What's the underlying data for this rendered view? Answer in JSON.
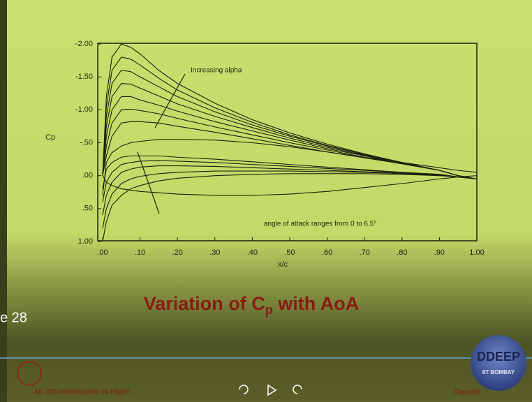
{
  "chart_data": {
    "type": "line",
    "ylabel": "Cp",
    "xlabel": "x/c",
    "annotations": [
      "Increasing alpha",
      "angle of attack ranges from 0 to 6.5°"
    ],
    "x": [
      0,
      0.01,
      0.025,
      0.05,
      0.075,
      0.1,
      0.15,
      0.2,
      0.3,
      0.4,
      0.5,
      0.6,
      0.7,
      0.8,
      0.9,
      0.95,
      1.0
    ],
    "xlim": [
      0,
      1
    ],
    "xticks": [
      {
        "value": 0,
        "label": ".00"
      },
      {
        "value": 0.1,
        "label": ".10"
      },
      {
        "value": 0.2,
        "label": ".20"
      },
      {
        "value": 0.3,
        "label": ".30"
      },
      {
        "value": 0.4,
        "label": ".40"
      },
      {
        "value": 0.5,
        "label": ".50"
      },
      {
        "value": 0.6,
        "label": ".60"
      },
      {
        "value": 0.7,
        "label": ".70"
      },
      {
        "value": 0.8,
        "label": ".80"
      },
      {
        "value": 0.9,
        "label": ".90"
      },
      {
        "value": 1,
        "label": "1.00"
      }
    ],
    "ylim": [
      -2,
      1
    ],
    "y_inverted": true,
    "yticks": [
      {
        "value": -2,
        "label": "-2.00"
      },
      {
        "value": -1.5,
        "label": "-1.50"
      },
      {
        "value": -1,
        "label": "-1.00"
      },
      {
        "value": -0.5,
        "label": "-.50"
      },
      {
        "value": 0,
        "label": ".00"
      },
      {
        "value": 0.5,
        "label": ".50"
      },
      {
        "value": 1,
        "label": "1.00"
      }
    ],
    "color": "#1c200c",
    "series": [
      {
        "values": [
          0.0,
          -1.2,
          -1.8,
          -2.0,
          -1.95,
          -1.85,
          -1.6,
          -1.4,
          -1.1,
          -0.85,
          -0.65,
          -0.48,
          -0.33,
          -0.2,
          -0.08,
          0.0,
          0.05
        ]
      },
      {
        "values": [
          0.0,
          -1.05,
          -1.6,
          -1.8,
          -1.77,
          -1.68,
          -1.48,
          -1.3,
          -1.03,
          -0.81,
          -0.62,
          -0.46,
          -0.32,
          -0.2,
          -0.08,
          0.0,
          0.05
        ]
      },
      {
        "values": [
          0.0,
          -0.9,
          -1.4,
          -1.6,
          -1.58,
          -1.5,
          -1.35,
          -1.2,
          -0.97,
          -0.77,
          -0.6,
          -0.45,
          -0.32,
          -0.2,
          -0.08,
          0.0,
          0.05
        ]
      },
      {
        "values": [
          0.0,
          -0.75,
          -1.2,
          -1.4,
          -1.39,
          -1.33,
          -1.21,
          -1.09,
          -0.9,
          -0.73,
          -0.57,
          -0.43,
          -0.31,
          -0.19,
          -0.08,
          0.0,
          0.05
        ]
      },
      {
        "values": [
          0.0,
          -0.6,
          -1.0,
          -1.2,
          -1.2,
          -1.15,
          -1.07,
          -0.98,
          -0.82,
          -0.68,
          -0.54,
          -0.41,
          -0.3,
          -0.19,
          -0.08,
          0.0,
          0.05
        ]
      },
      {
        "values": [
          0.0,
          -0.45,
          -0.8,
          -1.0,
          -1.01,
          -0.99,
          -0.94,
          -0.87,
          -0.74,
          -0.62,
          -0.5,
          -0.39,
          -0.28,
          -0.18,
          -0.08,
          0.0,
          0.05
        ]
      },
      {
        "values": [
          0.0,
          -0.3,
          -0.6,
          -0.8,
          -0.82,
          -0.82,
          -0.8,
          -0.75,
          -0.66,
          -0.56,
          -0.46,
          -0.36,
          -0.27,
          -0.18,
          -0.08,
          0.0,
          0.05
        ]
      },
      {
        "values": [
          0.3,
          -0.2,
          -0.35,
          -0.45,
          -0.5,
          -0.52,
          -0.55,
          -0.55,
          -0.54,
          -0.5,
          -0.44,
          -0.36,
          -0.28,
          -0.2,
          -0.12,
          -0.08,
          -0.05
        ]
      },
      {
        "values": [
          1.0,
          0.7,
          0.45,
          0.3,
          0.2,
          0.15,
          0.08,
          0.04,
          0.0,
          -0.02,
          -0.03,
          -0.03,
          -0.03,
          -0.02,
          0.0,
          0.02,
          0.05
        ]
      },
      {
        "values": [
          0.8,
          0.5,
          0.28,
          0.12,
          0.05,
          0.01,
          -0.03,
          -0.05,
          -0.07,
          -0.07,
          -0.07,
          -0.06,
          -0.05,
          -0.03,
          -0.01,
          0.02,
          0.05
        ]
      },
      {
        "values": [
          0.6,
          0.3,
          0.1,
          -0.05,
          -0.1,
          -0.13,
          -0.15,
          -0.15,
          -0.14,
          -0.12,
          -0.1,
          -0.08,
          -0.06,
          -0.04,
          -0.01,
          0.02,
          0.05
        ]
      },
      {
        "values": [
          0.4,
          0.1,
          -0.05,
          -0.17,
          -0.2,
          -0.22,
          -0.23,
          -0.22,
          -0.2,
          -0.17,
          -0.14,
          -0.11,
          -0.08,
          -0.05,
          -0.02,
          0.02,
          0.05
        ]
      },
      {
        "values": [
          0.2,
          -0.1,
          -0.2,
          -0.28,
          -0.3,
          -0.3,
          -0.3,
          -0.28,
          -0.25,
          -0.21,
          -0.17,
          -0.13,
          -0.09,
          -0.05,
          -0.02,
          0.02,
          0.05
        ]
      },
      {
        "values": [
          0.0,
          0.1,
          0.15,
          0.2,
          0.22,
          0.24,
          0.26,
          0.28,
          0.3,
          0.3,
          0.28,
          0.24,
          0.18,
          0.12,
          0.05,
          0.02,
          0.0
        ]
      }
    ]
  },
  "slide": {
    "title": "Variation of C",
    "title_subscript": "p",
    "title_rest": " with AoA",
    "slide_number": "e 28",
    "footer_left": "AE-705 Introduction to Flight",
    "footer_right": "Capsule",
    "logo": "DDEEP",
    "logo_sub": "IIT BOMBAY"
  }
}
